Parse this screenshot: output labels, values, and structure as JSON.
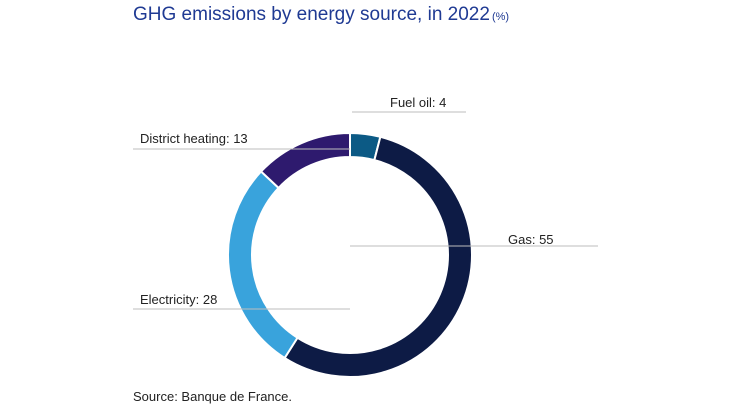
{
  "title": "GHG emissions by energy source, in 2022",
  "title_unit": "(%)",
  "source": "Source: Banque de France.",
  "chart_data": {
    "type": "pie",
    "variant": "donut",
    "title": "GHG emissions by energy source, in 2022",
    "unit": "%",
    "start": "12 o'clock, clockwise",
    "slices": [
      {
        "label": "Fuel oil: 4",
        "name": "Fuel oil",
        "value": 4,
        "color": "#0c5a85"
      },
      {
        "label": "Gas: 55",
        "name": "Gas",
        "value": 55,
        "color": "#0d1b45"
      },
      {
        "label": "Electricity: 28",
        "name": "Electricity",
        "value": 28,
        "color": "#39a3dc"
      },
      {
        "label": "District heating: 13",
        "name": "District heating",
        "value": 13,
        "color": "#2e1a6e"
      }
    ],
    "legend": "none"
  }
}
